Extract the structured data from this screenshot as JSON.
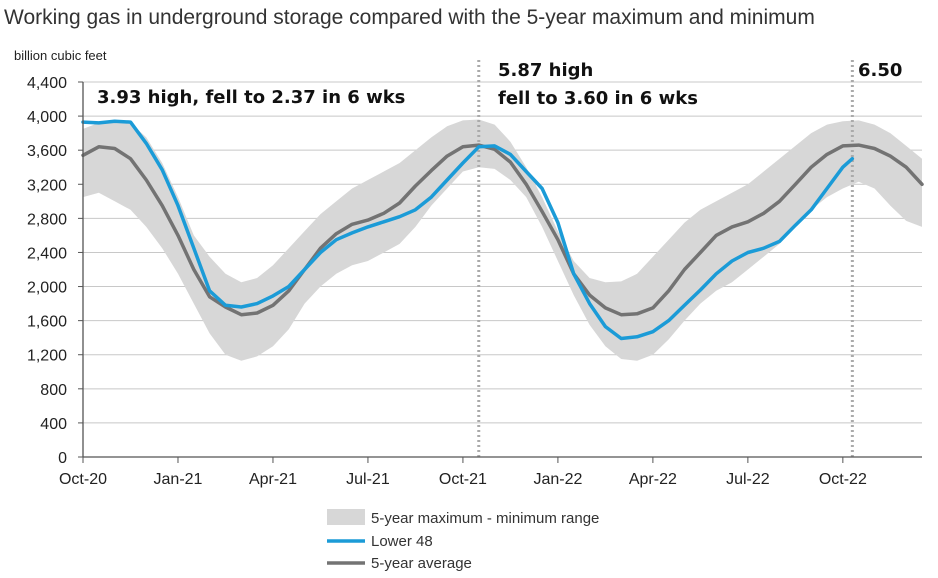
{
  "title": "Working gas in underground  storage compared with the 5-year maximum and minimum",
  "chart_data": {
    "type": "line",
    "ylabel": "billion cubic feet",
    "ylim": [
      0,
      4400
    ],
    "yticks": [
      0,
      400,
      800,
      1200,
      1600,
      2000,
      2400,
      2800,
      3200,
      3600,
      4000,
      4400
    ],
    "xlim": [
      0,
      26.5
    ],
    "xticks": [
      {
        "x": 0,
        "label": "Oct-20"
      },
      {
        "x": 3,
        "label": "Jan-21"
      },
      {
        "x": 6,
        "label": "Apr-21"
      },
      {
        "x": 9,
        "label": "Jul-21"
      },
      {
        "x": 12,
        "label": "Oct-21"
      },
      {
        "x": 15,
        "label": "Jan-22"
      },
      {
        "x": 18,
        "label": "Apr-22"
      },
      {
        "x": 21,
        "label": "Jul-22"
      },
      {
        "x": 24,
        "label": "Oct-22"
      }
    ],
    "grid": true,
    "legend_position": "bottom-center",
    "colors": {
      "range": "#d7d7d7",
      "lower48": "#1b9bd7",
      "avg": "#737373",
      "vline": "#aaaaaa",
      "grid": "#c8c8c8"
    },
    "series": [
      {
        "name": "5-year maximum - minimum range",
        "kind": "band",
        "x": [
          0,
          0.5,
          1,
          1.5,
          2,
          2.5,
          3,
          3.5,
          4,
          4.5,
          5,
          5.5,
          6,
          6.5,
          7,
          7.5,
          8,
          8.5,
          9,
          9.5,
          10,
          10.5,
          11,
          11.5,
          12,
          12.5,
          13,
          13.5,
          14,
          14.5,
          15,
          15.5,
          16,
          16.5,
          17,
          17.5,
          18,
          18.5,
          19,
          19.5,
          20,
          20.5,
          21,
          21.5,
          22,
          22.5,
          23,
          23.5,
          24,
          24.5,
          25,
          25.5,
          26,
          26.5
        ],
        "upper": [
          3850,
          3920,
          3960,
          3920,
          3750,
          3450,
          3050,
          2600,
          2350,
          2150,
          2050,
          2100,
          2250,
          2450,
          2650,
          2850,
          3000,
          3150,
          3250,
          3350,
          3450,
          3600,
          3750,
          3880,
          3950,
          3960,
          3900,
          3700,
          3400,
          3050,
          2650,
          2300,
          2100,
          2050,
          2060,
          2150,
          2350,
          2550,
          2750,
          2900,
          3000,
          3100,
          3200,
          3350,
          3500,
          3650,
          3800,
          3900,
          3940,
          3950,
          3900,
          3800,
          3650,
          3500
        ],
        "lower": [
          3050,
          3100,
          3000,
          2900,
          2700,
          2450,
          2150,
          1800,
          1450,
          1200,
          1130,
          1180,
          1300,
          1500,
          1800,
          2000,
          2150,
          2250,
          2300,
          2400,
          2500,
          2700,
          2950,
          3150,
          3350,
          3400,
          3380,
          3250,
          3050,
          2700,
          2300,
          1900,
          1550,
          1300,
          1150,
          1130,
          1200,
          1380,
          1600,
          1800,
          1950,
          2050,
          2200,
          2350,
          2500,
          2700,
          2900,
          3050,
          3150,
          3230,
          3150,
          2950,
          2770,
          2700
        ]
      },
      {
        "name": "Lower 48",
        "x": [
          0,
          0.5,
          1,
          1.5,
          2,
          2.5,
          3,
          3.5,
          4,
          4.5,
          5,
          5.5,
          6,
          6.5,
          7,
          7.5,
          8,
          8.5,
          9,
          9.5,
          10,
          10.5,
          11,
          11.5,
          12,
          12.5,
          13,
          13.5,
          14,
          14.5,
          15,
          15.5,
          16,
          16.5,
          17,
          17.5,
          18,
          18.5,
          19,
          19.5,
          20,
          20.5,
          21,
          21.5,
          22,
          22.5,
          23,
          23.5,
          24,
          24.3
        ],
        "values": [
          3930,
          3920,
          3940,
          3930,
          3680,
          3370,
          2950,
          2450,
          1950,
          1780,
          1760,
          1800,
          1890,
          2000,
          2200,
          2400,
          2550,
          2630,
          2700,
          2760,
          2820,
          2900,
          3050,
          3250,
          3450,
          3640,
          3650,
          3550,
          3350,
          3150,
          2750,
          2150,
          1800,
          1530,
          1390,
          1410,
          1470,
          1600,
          1780,
          1960,
          2150,
          2300,
          2400,
          2450,
          2530,
          2720,
          2900,
          3150,
          3400,
          3500
        ]
      },
      {
        "name": "5-year average",
        "x": [
          0,
          0.5,
          1,
          1.5,
          2,
          2.5,
          3,
          3.5,
          4,
          4.5,
          5,
          5.5,
          6,
          6.5,
          7,
          7.5,
          8,
          8.5,
          9,
          9.5,
          10,
          10.5,
          11,
          11.5,
          12,
          12.5,
          13,
          13.5,
          14,
          14.5,
          15,
          15.5,
          16,
          16.5,
          17,
          17.5,
          18,
          18.5,
          19,
          19.5,
          20,
          20.5,
          21,
          21.5,
          22,
          22.5,
          23,
          23.5,
          24,
          24.5,
          25,
          25.5,
          26,
          26.5
        ],
        "values": [
          3540,
          3640,
          3620,
          3500,
          3250,
          2950,
          2600,
          2200,
          1880,
          1760,
          1670,
          1690,
          1780,
          1950,
          2200,
          2450,
          2620,
          2730,
          2780,
          2860,
          2980,
          3180,
          3360,
          3530,
          3640,
          3660,
          3610,
          3460,
          3200,
          2880,
          2550,
          2150,
          1900,
          1750,
          1670,
          1680,
          1750,
          1950,
          2200,
          2400,
          2600,
          2700,
          2760,
          2860,
          3000,
          3200,
          3400,
          3550,
          3650,
          3660,
          3620,
          3530,
          3400,
          3200
        ]
      }
    ],
    "vlines": [
      12.5,
      24.3
    ],
    "annotations": [
      {
        "lines": [
          "3.93 high, fell to 2.37 in 6 wks"
        ]
      },
      {
        "lines": [
          "5.87 high",
          "fell to 3.60 in 6 wks"
        ]
      },
      {
        "lines": [
          "6.50"
        ]
      }
    ]
  }
}
